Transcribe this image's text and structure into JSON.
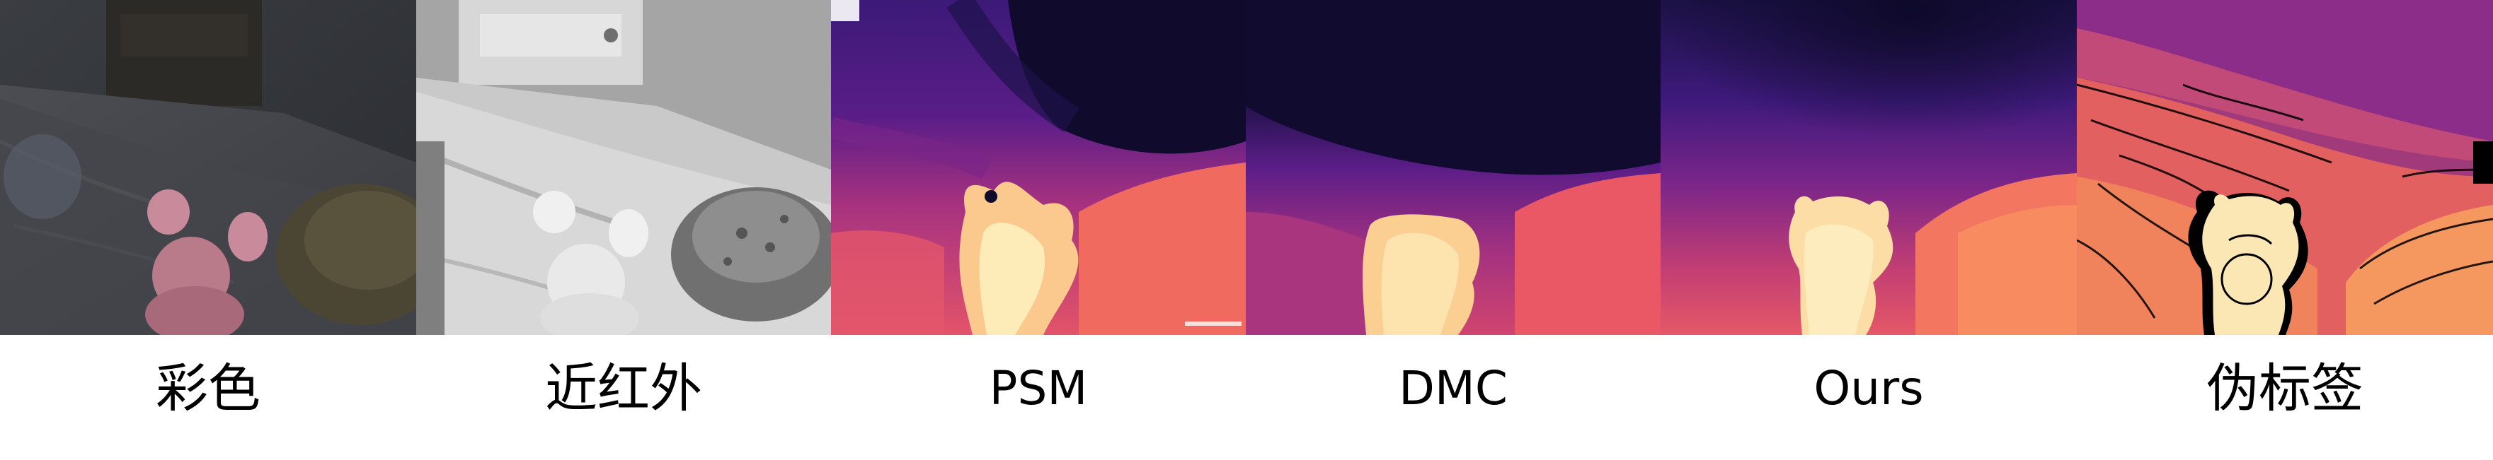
{
  "panels": [
    {
      "id": "color",
      "label": "彩色"
    },
    {
      "id": "nir",
      "label": "近红外"
    },
    {
      "id": "psm",
      "label": "PSM"
    },
    {
      "id": "dmc",
      "label": "DMC"
    },
    {
      "id": "ours",
      "label": "Ours"
    },
    {
      "id": "pseudo",
      "label": "伪标签"
    }
  ],
  "colors": {
    "magma_dark": "#100b2d",
    "magma_purple": "#6a1c86",
    "magma_magenta": "#b73779",
    "magma_orange": "#f98b5c",
    "magma_light": "#fcefbd"
  }
}
